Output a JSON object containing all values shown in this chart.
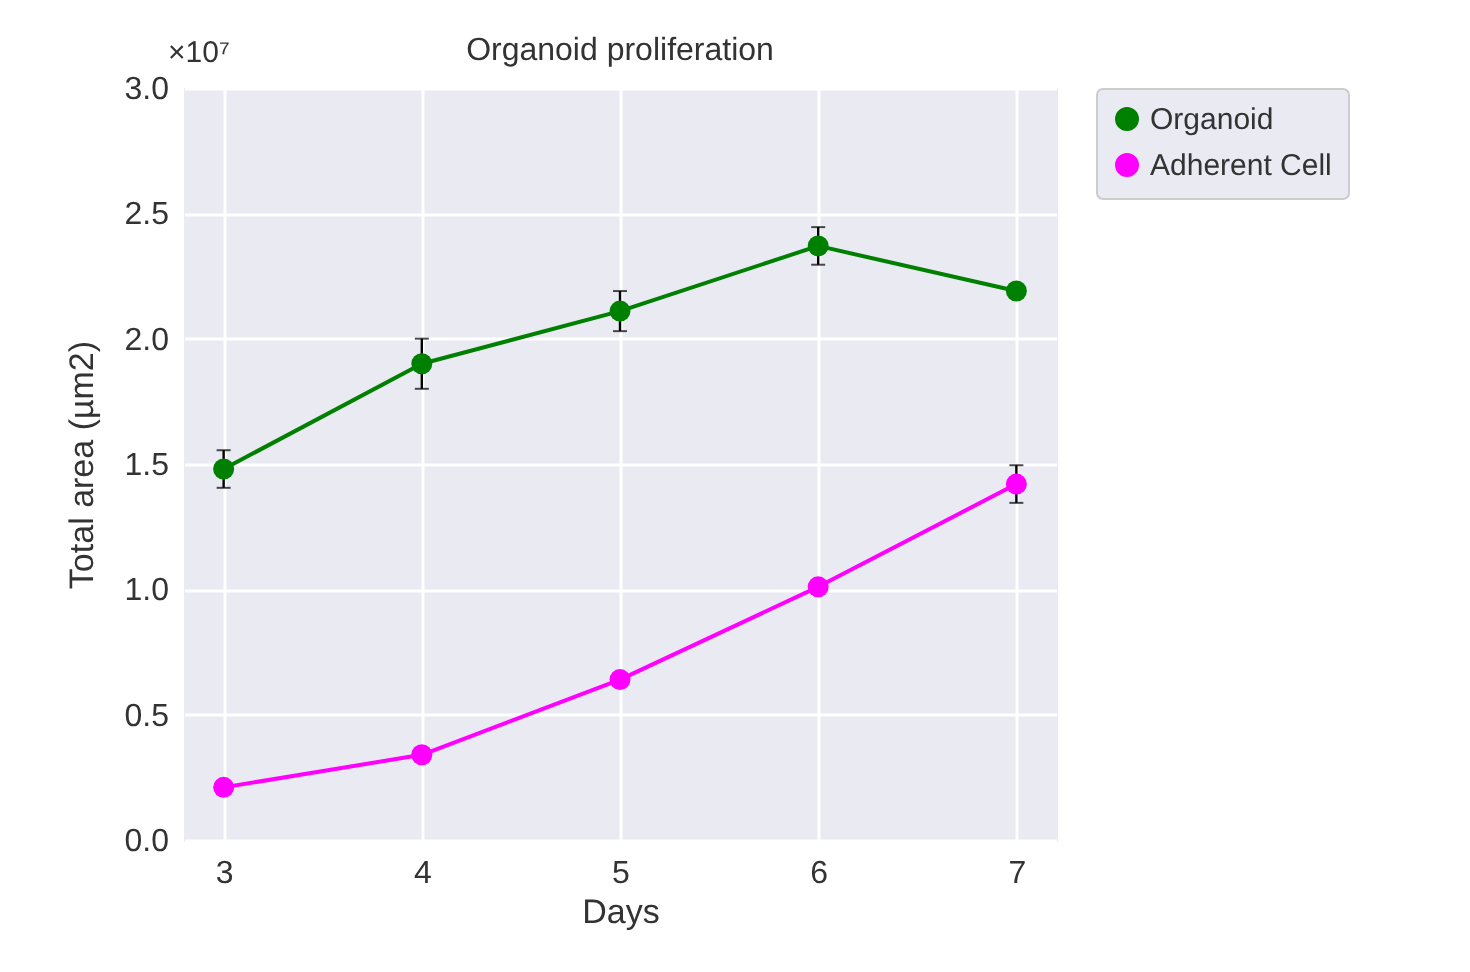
{
  "chart_data": {
    "type": "line",
    "title": "Organoid proliferation",
    "xlabel": "Days",
    "ylabel": "Total area (µm2)",
    "x": [
      3,
      4,
      5,
      6,
      7
    ],
    "series": [
      {
        "name": "Organoid",
        "color": "#008000",
        "values": [
          1.48,
          1.9,
          2.11,
          2.37,
          2.19
        ],
        "errors": [
          0.075,
          0.1,
          0.08,
          0.075,
          null
        ]
      },
      {
        "name": "Adherent Cell",
        "color": "#ff00ff",
        "values": [
          0.21,
          0.34,
          0.64,
          1.01,
          1.42
        ],
        "errors": [
          null,
          null,
          null,
          null,
          0.075
        ]
      }
    ],
    "xlim": [
      2.8,
      7.2
    ],
    "xticks": [
      3,
      4,
      5,
      6,
      7
    ],
    "ylim": [
      0,
      3
    ],
    "yticks": [
      {
        "value": 0,
        "label": "0.0"
      },
      {
        "value": 0.5,
        "label": "0.5"
      },
      {
        "value": 1,
        "label": "1.0"
      },
      {
        "value": 1.5,
        "label": "1.5"
      },
      {
        "value": 2,
        "label": "2.0"
      },
      {
        "value": 2.5,
        "label": "2.5"
      },
      {
        "value": 3,
        "label": "3.0"
      }
    ],
    "annotations": [
      "×10⁷"
    ],
    "grid": true,
    "legend": "top right",
    "marker": "circle",
    "line_style": "solid"
  }
}
